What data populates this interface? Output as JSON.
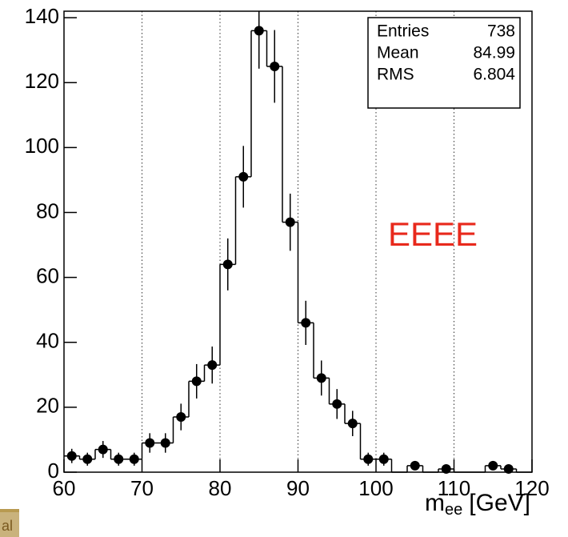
{
  "chart_data": {
    "type": "histogram",
    "bins": [
      60,
      62,
      64,
      66,
      68,
      70,
      72,
      74,
      76,
      78,
      80,
      82,
      84,
      86,
      88,
      90,
      92,
      94,
      96,
      98,
      100,
      102,
      104,
      106,
      108,
      110,
      112,
      114,
      116,
      118,
      120
    ],
    "counts": [
      5,
      4,
      7,
      4,
      4,
      9,
      9,
      17,
      28,
      33,
      64,
      91,
      136,
      125,
      77,
      46,
      29,
      21,
      15,
      4,
      4,
      0,
      2,
      0,
      1,
      0,
      0,
      2,
      1,
      0
    ],
    "errors": [
      2.2,
      2,
      2.6,
      2,
      2,
      3,
      3,
      4.1,
      5.3,
      5.7,
      8,
      9.5,
      11.7,
      11.2,
      8.8,
      6.8,
      5.4,
      4.6,
      3.9,
      2,
      2,
      0,
      1.4,
      0,
      1,
      0,
      0,
      1.4,
      1,
      0
    ],
    "color": "#000000",
    "xlim": [
      60,
      120
    ],
    "xticks": [
      60,
      70,
      80,
      90,
      100,
      110,
      120
    ],
    "ylim": [
      0,
      142
    ],
    "yticks": [
      0,
      20,
      40,
      60,
      80,
      100,
      120,
      140
    ],
    "grid": true,
    "xlabel": {
      "main": "m",
      "sub": "ee",
      "unit": "[GeV]"
    },
    "stats": [
      {
        "label": "Entries",
        "value": 738
      },
      {
        "label": "Mean",
        "value": 84.99
      },
      {
        "label": "RMS",
        "value": 6.804
      }
    ],
    "annotation": "EEEE",
    "annotation_color": "#e8291c",
    "logo_fragment": "al"
  }
}
